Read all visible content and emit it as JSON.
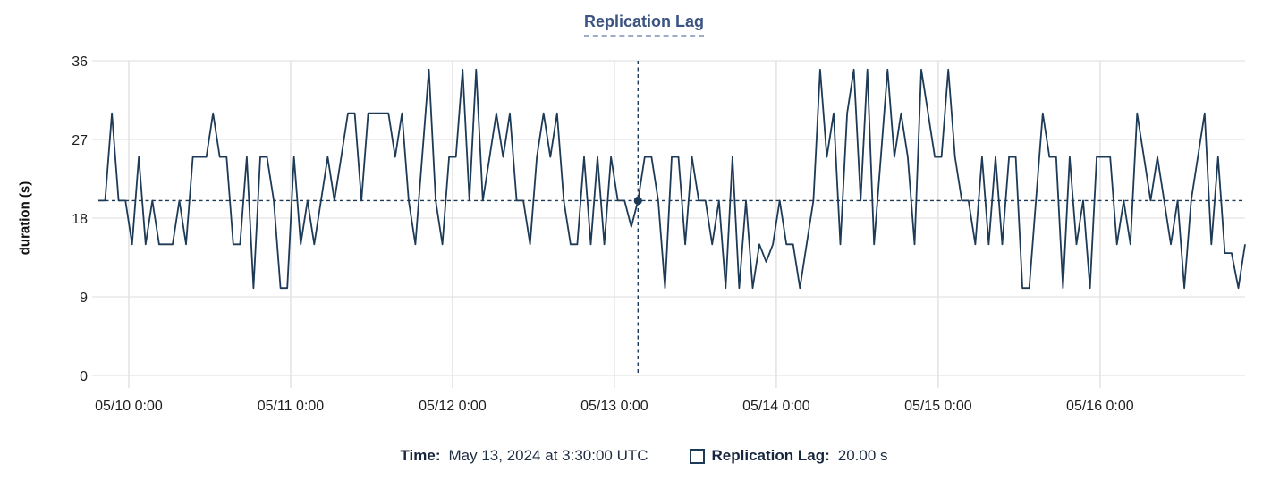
{
  "chart_data": {
    "type": "line",
    "title": "Replication Lag",
    "ylabel": "duration (s)",
    "ylim": [
      0,
      36
    ],
    "y_ticks": [
      0,
      9,
      18,
      27,
      36
    ],
    "x_ticks": [
      {
        "label": "05/10 0:00",
        "i": 4.5
      },
      {
        "label": "05/11 0:00",
        "i": 28.5
      },
      {
        "label": "05/12 0:00",
        "i": 52.5
      },
      {
        "label": "05/13 0:00",
        "i": 76.5
      },
      {
        "label": "05/14 0:00",
        "i": 100.5
      },
      {
        "label": "05/15 0:00",
        "i": 124.5
      },
      {
        "label": "05/16 0:00",
        "i": 148.5
      }
    ],
    "grid": true,
    "legend_position": "bottom",
    "series": [
      {
        "name": "Replication Lag",
        "color": "#1d3a57",
        "values": [
          20,
          20,
          30,
          20,
          20,
          15,
          25,
          15,
          20,
          15,
          15,
          15,
          20,
          15,
          25,
          25,
          25,
          30,
          25,
          25,
          15,
          15,
          25,
          10,
          25,
          25,
          20,
          10,
          10,
          25,
          15,
          20,
          15,
          20,
          25,
          20,
          25,
          30,
          30,
          20,
          30,
          30,
          30,
          30,
          25,
          30,
          20,
          15,
          25,
          35,
          20,
          15,
          25,
          25,
          35,
          20,
          35,
          20,
          25,
          30,
          25,
          30,
          20,
          20,
          15,
          25,
          30,
          25,
          30,
          20,
          15,
          15,
          25,
          15,
          25,
          15,
          25,
          20,
          20,
          17,
          20,
          25,
          25,
          20,
          10,
          25,
          25,
          15,
          25,
          20,
          20,
          15,
          20,
          10,
          25,
          10,
          20,
          10,
          15,
          13,
          15,
          20,
          15,
          15,
          10,
          15,
          20,
          35,
          25,
          30,
          15,
          30,
          35,
          20,
          35,
          15,
          25,
          35,
          25,
          30,
          25,
          15,
          35,
          30,
          25,
          25,
          35,
          25,
          20,
          20,
          15,
          25,
          15,
          25,
          15,
          25,
          25,
          10,
          10,
          20,
          30,
          25,
          25,
          10,
          25,
          15,
          20,
          10,
          25,
          25,
          25,
          15,
          20,
          15,
          30,
          25,
          20,
          25,
          20,
          15,
          20,
          10,
          20,
          25,
          30,
          15,
          25,
          14,
          14,
          10,
          15
        ]
      }
    ],
    "crosshair": {
      "index": 80,
      "value": 20
    }
  },
  "footer": {
    "time_label": "Time:",
    "time_value": "May 13, 2024 at 3:30:00 UTC",
    "legend_label": "Replication Lag:",
    "legend_value": "20.00 s"
  },
  "colors": {
    "line": "#1d3a57",
    "title": "#3b5482",
    "h_grid": "#e9e9e9",
    "v_grid": "#e4e4e4",
    "tick_text": "#1e1e1e"
  }
}
